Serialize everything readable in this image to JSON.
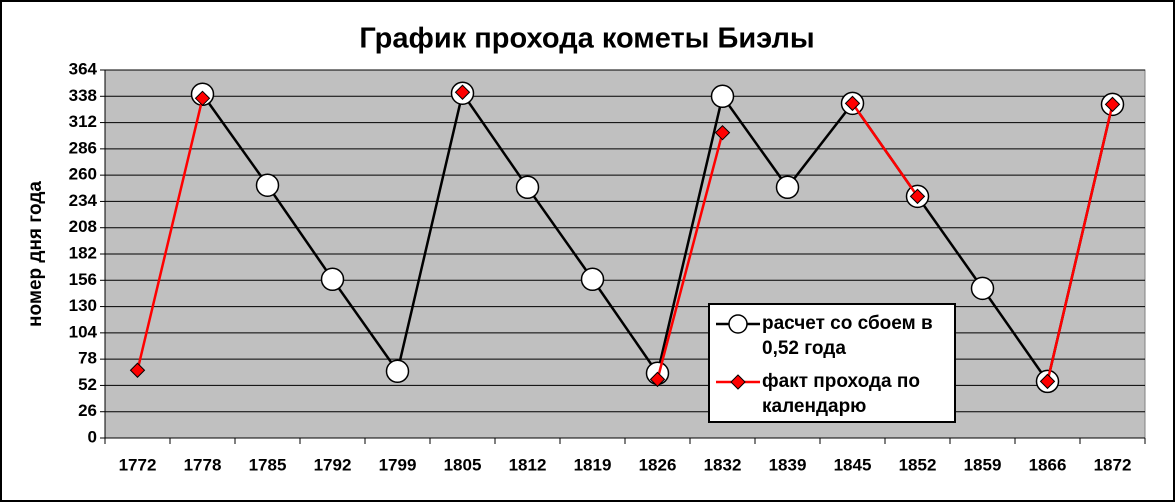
{
  "chart_data": {
    "type": "line",
    "title": "График прохода кометы Биэлы",
    "y_label": "номер дня года",
    "categories": [
      "1772",
      "1778",
      "1785",
      "1792",
      "1799",
      "1805",
      "1812",
      "1819",
      "1826",
      "1832",
      "1839",
      "1845",
      "1852",
      "1859",
      "1866",
      "1872"
    ],
    "series": [
      {
        "name": "расчет со сбоем в 0,52 года",
        "color": "#000000",
        "marker": "circle",
        "values": [
          null,
          340,
          250,
          157,
          66,
          341,
          248,
          157,
          64,
          338,
          248,
          331,
          239,
          148,
          56,
          330
        ]
      },
      {
        "name": "факт прохода по календарю",
        "color": "#ff0000",
        "marker": "diamond",
        "values": [
          67,
          336,
          null,
          null,
          null,
          342,
          null,
          null,
          58,
          302,
          null,
          331,
          239,
          null,
          56,
          330
        ]
      }
    ],
    "ylim": [
      0,
      364
    ],
    "yticks": [
      0,
      26,
      52,
      78,
      104,
      130,
      156,
      182,
      208,
      234,
      260,
      286,
      312,
      338,
      364
    ],
    "grid": true,
    "plot_background": "#c0c0c0",
    "legend": "inside-lower-right"
  }
}
